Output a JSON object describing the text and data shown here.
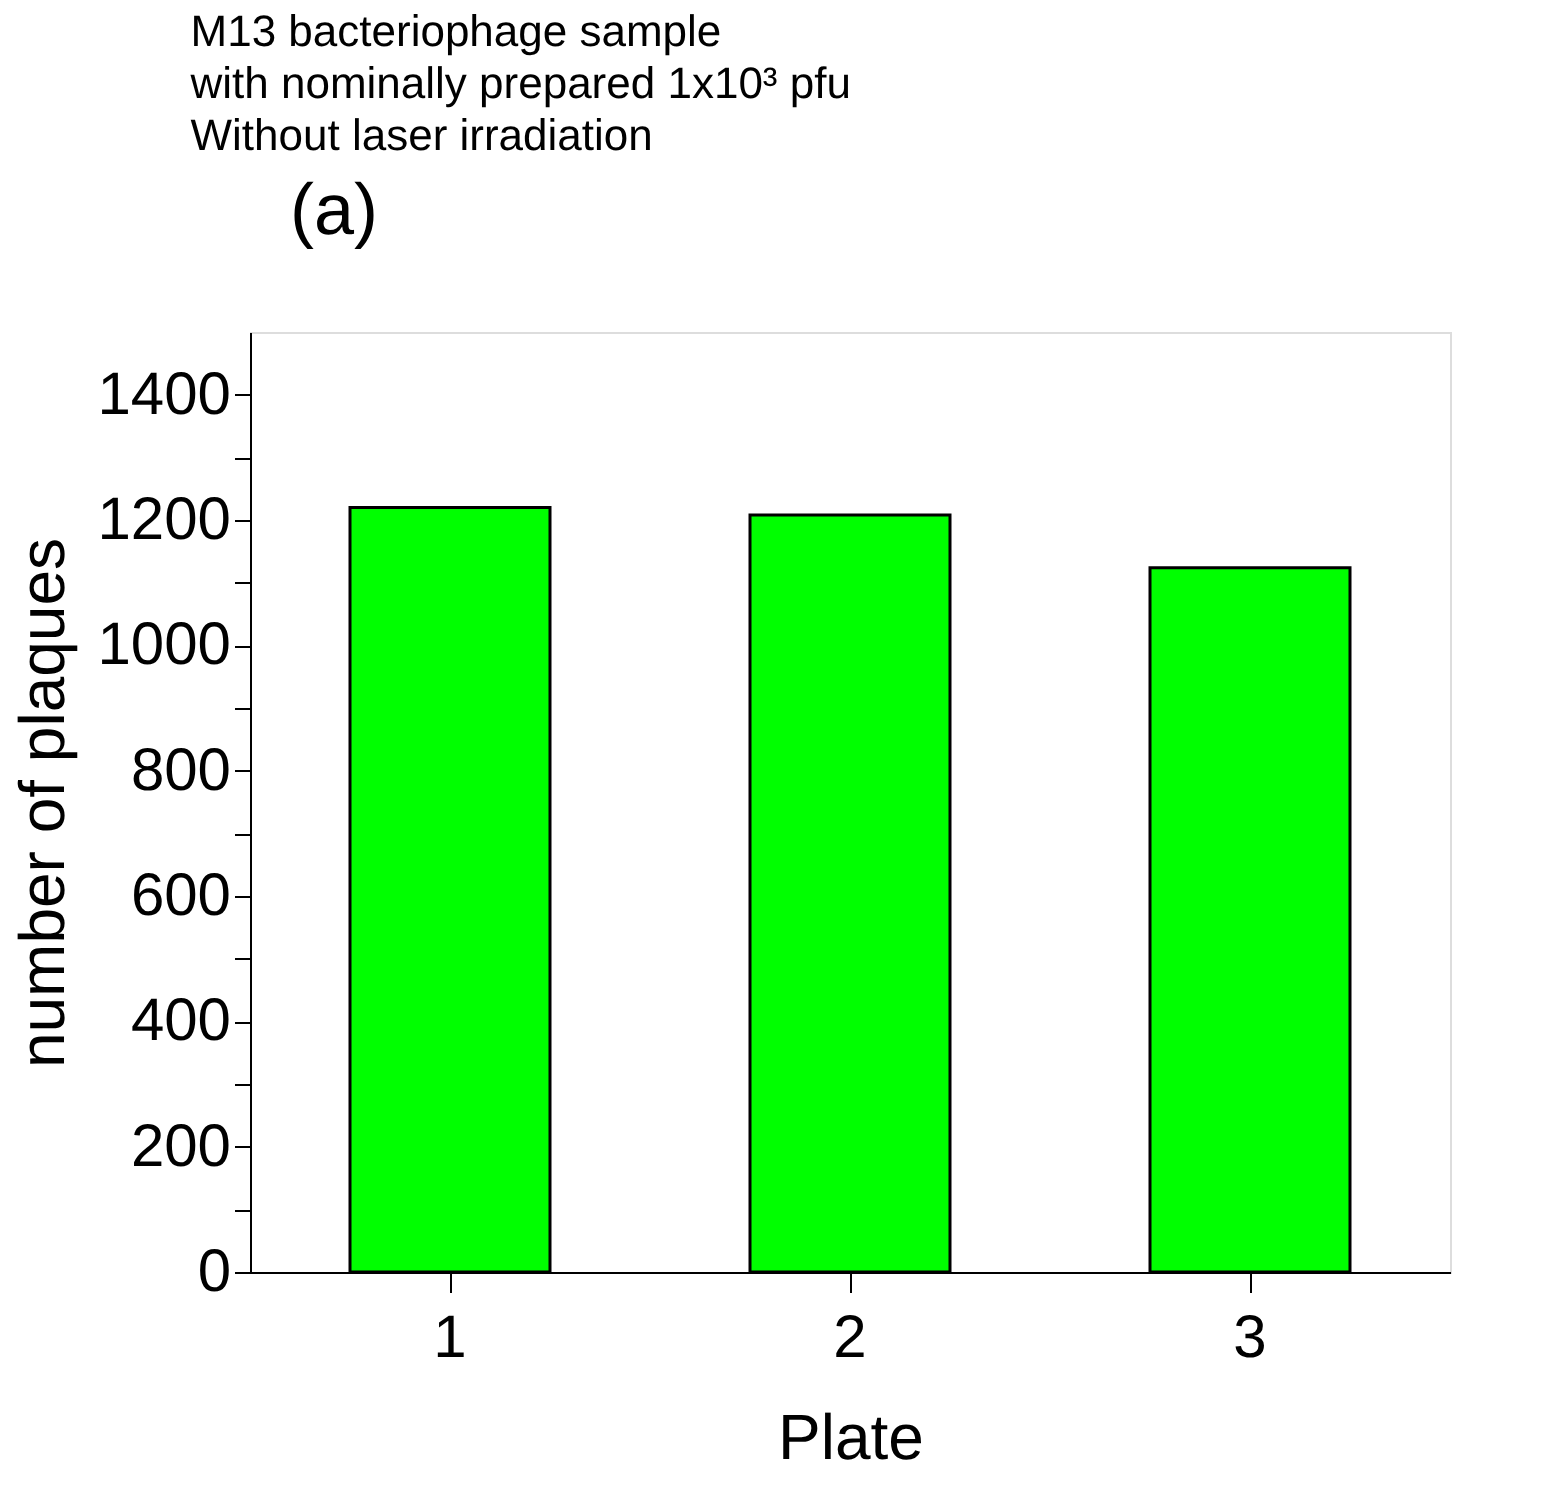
{
  "chart_data": {
    "type": "bar",
    "title": [
      "M13 bacteriophage sample",
      "with nominally prepared 1x10³ pfu",
      "Without laser irradiation"
    ],
    "annotations": [
      "(a)"
    ],
    "xlabel": "Plate",
    "ylabel": "number of plaques",
    "categories": [
      "1",
      "2",
      "3"
    ],
    "values": [
      1220,
      1208,
      1124
    ],
    "color": "#00ff00",
    "ylim": [
      0,
      1500
    ],
    "yticks": [
      0,
      {
        "value": 100,
        "label": null
      },
      200,
      {
        "value": 300,
        "label": null
      },
      400,
      {
        "value": 500,
        "label": null
      },
      600,
      {
        "value": 700,
        "label": null
      },
      800,
      {
        "value": 900,
        "label": null
      },
      1000,
      {
        "value": 1100,
        "label": null
      },
      1200,
      {
        "value": 1300,
        "label": null
      },
      1400
    ],
    "grid": false
  }
}
